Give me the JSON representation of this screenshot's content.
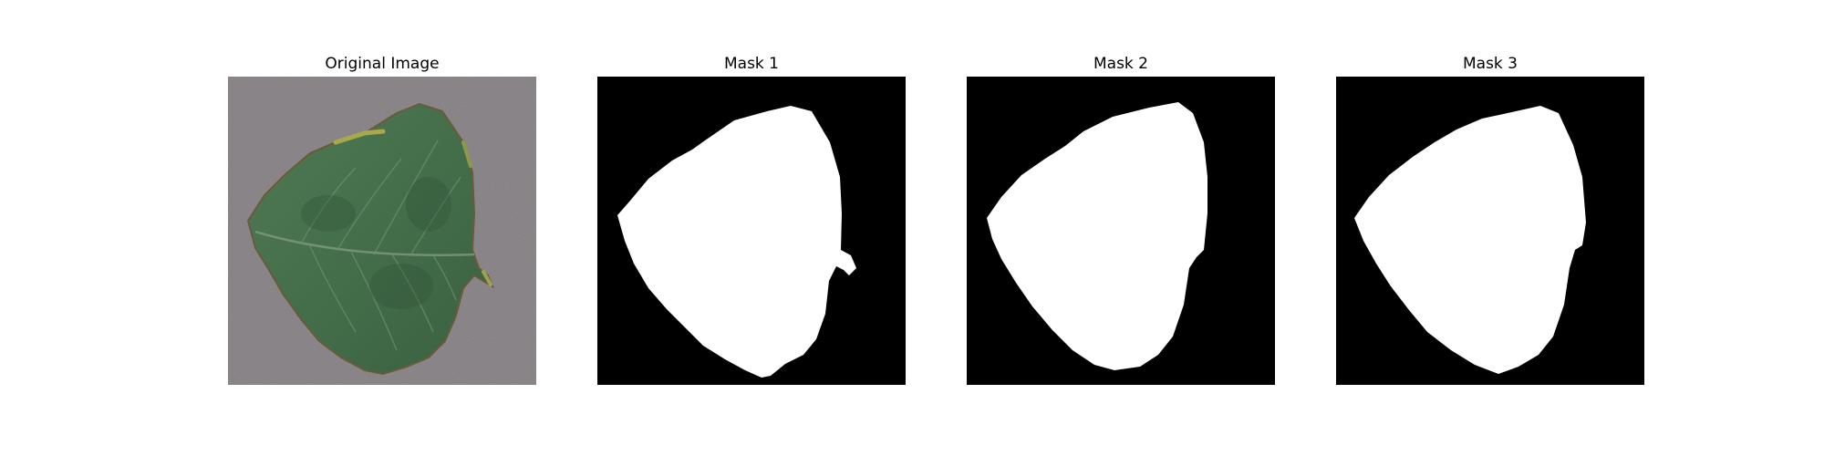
{
  "figure": {
    "panels": [
      {
        "title": "Original Image",
        "kind": "photo",
        "subject": "leaf-image"
      },
      {
        "title": "Mask 1",
        "kind": "mask",
        "subject": "leaf-mask"
      },
      {
        "title": "Mask 2",
        "kind": "mask",
        "subject": "leaf-mask"
      },
      {
        "title": "Mask 3",
        "kind": "mask",
        "subject": "leaf-mask"
      }
    ]
  },
  "colors": {
    "background": "#ffffff",
    "mask_background": "#000000",
    "mask_foreground": "#ffffff",
    "leaf_green": "#466f4b",
    "leaf_dark": "#33573a",
    "leaf_edge_yellow": "#a9a84a",
    "surface_gray": "#8f8a8d"
  }
}
